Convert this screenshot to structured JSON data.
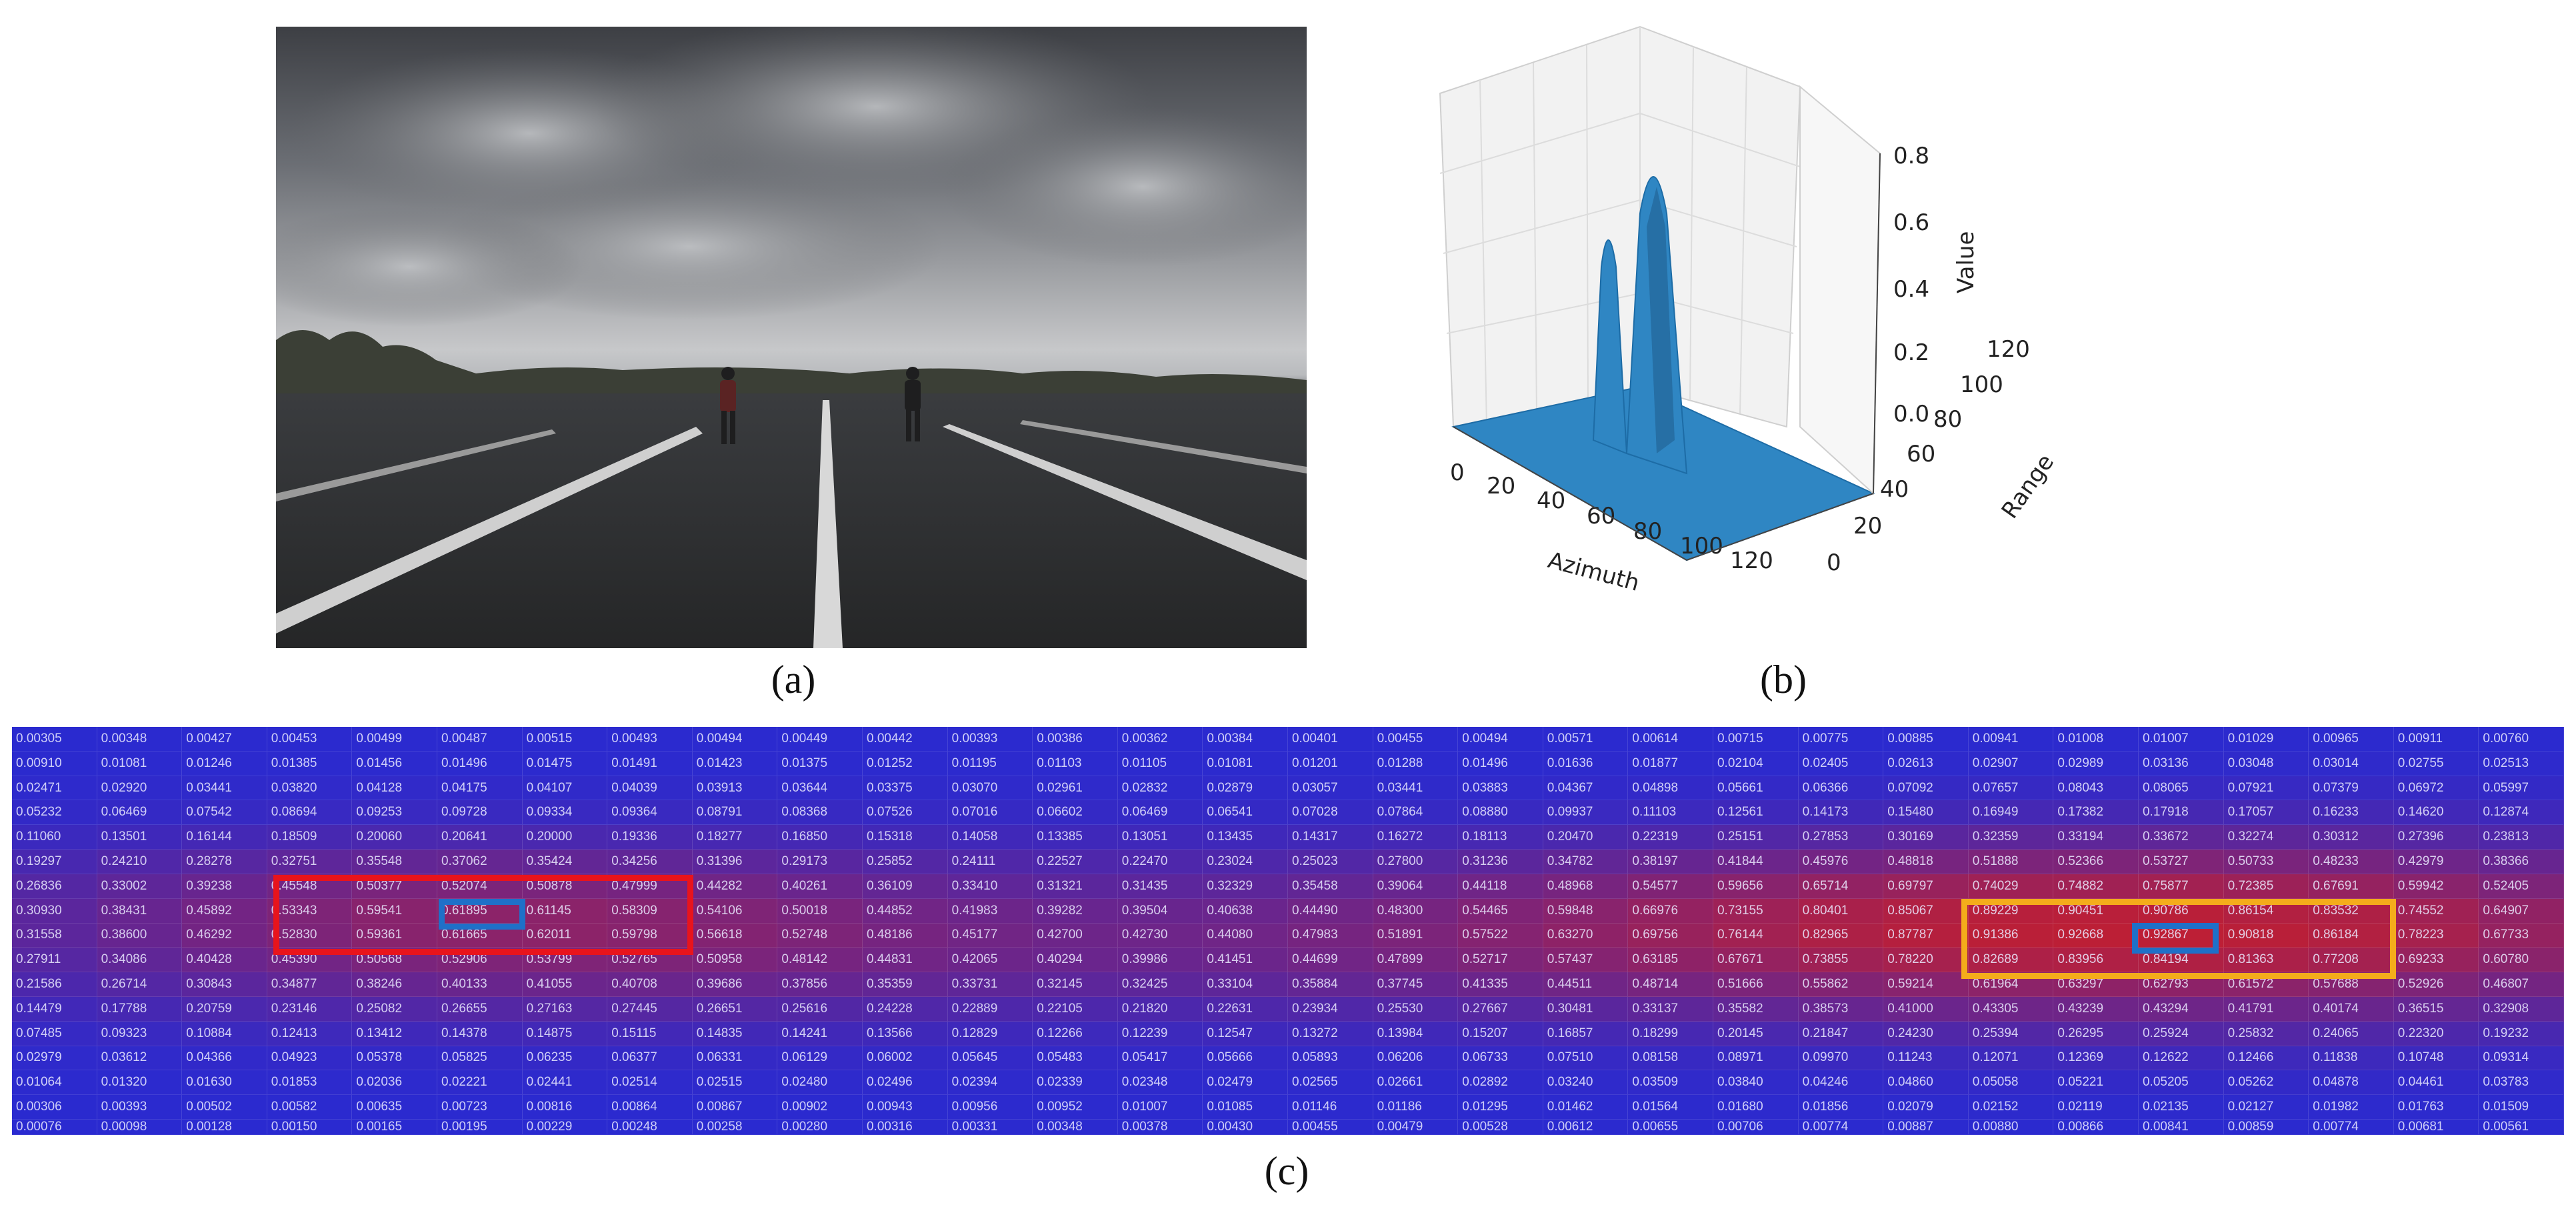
{
  "panel_a": {
    "caption": "(a)"
  },
  "panel_b": {
    "caption": "(b)",
    "axes": {
      "xlabel": "Azimuth",
      "ylabel": "Range",
      "zlabel": "Value",
      "xticks": [
        "0",
        "20",
        "40",
        "60",
        "80",
        "100",
        "120"
      ],
      "yticks": [
        "0",
        "20",
        "40",
        "60",
        "80",
        "100",
        "120"
      ],
      "zticks": [
        "0.0",
        "0.2",
        "0.4",
        "0.6",
        "0.8"
      ]
    },
    "surface_color": "#2f86c3"
  },
  "panel_c": {
    "caption": "(c)",
    "columns": 30,
    "rows": [
      [
        "0.00305",
        "0.00348",
        "0.00427",
        "0.00453",
        "0.00499",
        "0.00487",
        "0.00515",
        "0.00493",
        "0.00494",
        "0.00449",
        "0.00442",
        "0.00393",
        "0.00386",
        "0.00362",
        "0.00384",
        "0.00401",
        "0.00455",
        "0.00494",
        "0.00571",
        "0.00614",
        "0.00715",
        "0.00775",
        "0.00885",
        "0.00941",
        "0.01008",
        "0.01007",
        "0.01029",
        "0.00965",
        "0.00911",
        "0.00760"
      ],
      [
        "0.00910",
        "0.01081",
        "0.01246",
        "0.01385",
        "0.01456",
        "0.01496",
        "0.01475",
        "0.01491",
        "0.01423",
        "0.01375",
        "0.01252",
        "0.01195",
        "0.01103",
        "0.01105",
        "0.01081",
        "0.01201",
        "0.01288",
        "0.01496",
        "0.01636",
        "0.01877",
        "0.02104",
        "0.02405",
        "0.02613",
        "0.02907",
        "0.02989",
        "0.03136",
        "0.03048",
        "0.03014",
        "0.02755",
        "0.02513"
      ],
      [
        "0.02471",
        "0.02920",
        "0.03441",
        "0.03820",
        "0.04128",
        "0.04175",
        "0.04107",
        "0.04039",
        "0.03913",
        "0.03644",
        "0.03375",
        "0.03070",
        "0.02961",
        "0.02832",
        "0.02879",
        "0.03057",
        "0.03441",
        "0.03883",
        "0.04367",
        "0.04898",
        "0.05661",
        "0.06366",
        "0.07092",
        "0.07657",
        "0.08043",
        "0.08065",
        "0.07921",
        "0.07379",
        "0.06972",
        "0.05997"
      ],
      [
        "0.05232",
        "0.06469",
        "0.07542",
        "0.08694",
        "0.09253",
        "0.09728",
        "0.09334",
        "0.09364",
        "0.08791",
        "0.08368",
        "0.07526",
        "0.07016",
        "0.06602",
        "0.06469",
        "0.06541",
        "0.07028",
        "0.07864",
        "0.08880",
        "0.09937",
        "0.11103",
        "0.12561",
        "0.14173",
        "0.15480",
        "0.16949",
        "0.17382",
        "0.17918",
        "0.17057",
        "0.16233",
        "0.14620",
        "0.12874"
      ],
      [
        "0.11060",
        "0.13501",
        "0.16144",
        "0.18509",
        "0.20060",
        "0.20641",
        "0.20000",
        "0.19336",
        "0.18277",
        "0.16850",
        "0.15318",
        "0.14058",
        "0.13385",
        "0.13051",
        "0.13435",
        "0.14317",
        "0.16272",
        "0.18113",
        "0.20470",
        "0.22319",
        "0.25151",
        "0.27853",
        "0.30169",
        "0.32359",
        "0.33194",
        "0.33672",
        "0.32274",
        "0.30312",
        "0.27396",
        "0.23813"
      ],
      [
        "0.19297",
        "0.24210",
        "0.28278",
        "0.32751",
        "0.35548",
        "0.37062",
        "0.35424",
        "0.34256",
        "0.31396",
        "0.29173",
        "0.25852",
        "0.24111",
        "0.22527",
        "0.22470",
        "0.23024",
        "0.25023",
        "0.27800",
        "0.31236",
        "0.34782",
        "0.38197",
        "0.41844",
        "0.45976",
        "0.48818",
        "0.51888",
        "0.52366",
        "0.53727",
        "0.50733",
        "0.48233",
        "0.42979",
        "0.38366"
      ],
      [
        "0.26836",
        "0.33002",
        "0.39238",
        "0.45548",
        "0.50377",
        "0.52074",
        "0.50878",
        "0.47999",
        "0.44282",
        "0.40261",
        "0.36109",
        "0.33410",
        "0.31321",
        "0.31435",
        "0.32329",
        "0.35458",
        "0.39064",
        "0.44118",
        "0.48968",
        "0.54577",
        "0.59656",
        "0.65714",
        "0.69797",
        "0.74029",
        "0.74882",
        "0.75877",
        "0.72385",
        "0.67691",
        "0.59942",
        "0.52405"
      ],
      [
        "0.30930",
        "0.38431",
        "0.45892",
        "0.53343",
        "0.59541",
        "0.61895",
        "0.61145",
        "0.58309",
        "0.54106",
        "0.50018",
        "0.44852",
        "0.41983",
        "0.39282",
        "0.39504",
        "0.40638",
        "0.44490",
        "0.48300",
        "0.54465",
        "0.59848",
        "0.66976",
        "0.73155",
        "0.80401",
        "0.85067",
        "0.89229",
        "0.90451",
        "0.90786",
        "0.86154",
        "0.83532",
        "0.74552",
        "0.64907"
      ],
      [
        "0.31558",
        "0.38600",
        "0.46292",
        "0.52830",
        "0.59361",
        "0.61665",
        "0.62011",
        "0.59798",
        "0.56618",
        "0.52748",
        "0.48186",
        "0.45177",
        "0.42700",
        "0.42730",
        "0.44080",
        "0.47983",
        "0.51891",
        "0.57522",
        "0.63270",
        "0.69756",
        "0.76144",
        "0.82965",
        "0.87787",
        "0.91386",
        "0.92668",
        "0.92867",
        "0.90818",
        "0.86184",
        "0.78223",
        "0.67733"
      ],
      [
        "0.27911",
        "0.34086",
        "0.40428",
        "0.45390",
        "0.50568",
        "0.52906",
        "0.53799",
        "0.52765",
        "0.50958",
        "0.48142",
        "0.44831",
        "0.42065",
        "0.40294",
        "0.39986",
        "0.41451",
        "0.44699",
        "0.47899",
        "0.52717",
        "0.57437",
        "0.63185",
        "0.67671",
        "0.73855",
        "0.78220",
        "0.82689",
        "0.83956",
        "0.84194",
        "0.81363",
        "0.77208",
        "0.69233",
        "0.60780"
      ],
      [
        "0.21586",
        "0.26714",
        "0.30843",
        "0.34877",
        "0.38246",
        "0.40133",
        "0.41055",
        "0.40708",
        "0.39686",
        "0.37856",
        "0.35359",
        "0.33731",
        "0.32145",
        "0.32425",
        "0.33104",
        "0.35884",
        "0.37745",
        "0.41335",
        "0.44511",
        "0.48714",
        "0.51666",
        "0.55862",
        "0.59214",
        "0.61964",
        "0.63297",
        "0.62793",
        "0.61572",
        "0.57688",
        "0.52926",
        "0.46807"
      ],
      [
        "0.14479",
        "0.17788",
        "0.20759",
        "0.23146",
        "0.25082",
        "0.26655",
        "0.27163",
        "0.27445",
        "0.26651",
        "0.25616",
        "0.24228",
        "0.22889",
        "0.22105",
        "0.21820",
        "0.22631",
        "0.23934",
        "0.25530",
        "0.27667",
        "0.30481",
        "0.33137",
        "0.35582",
        "0.38573",
        "0.41000",
        "0.43305",
        "0.43239",
        "0.43294",
        "0.41791",
        "0.40174",
        "0.36515",
        "0.32908"
      ],
      [
        "0.07485",
        "0.09323",
        "0.10884",
        "0.12413",
        "0.13412",
        "0.14378",
        "0.14875",
        "0.15115",
        "0.14835",
        "0.14241",
        "0.13566",
        "0.12829",
        "0.12266",
        "0.12239",
        "0.12547",
        "0.13272",
        "0.13984",
        "0.15207",
        "0.16857",
        "0.18299",
        "0.20145",
        "0.21847",
        "0.24230",
        "0.25394",
        "0.26295",
        "0.25924",
        "0.25832",
        "0.24065",
        "0.22320",
        "0.19232"
      ],
      [
        "0.02979",
        "0.03612",
        "0.04366",
        "0.04923",
        "0.05378",
        "0.05825",
        "0.06235",
        "0.06377",
        "0.06331",
        "0.06129",
        "0.06002",
        "0.05645",
        "0.05483",
        "0.05417",
        "0.05666",
        "0.05893",
        "0.06206",
        "0.06733",
        "0.07510",
        "0.08158",
        "0.08971",
        "0.09970",
        "0.11243",
        "0.12071",
        "0.12369",
        "0.12622",
        "0.12466",
        "0.11838",
        "0.10748",
        "0.09314"
      ],
      [
        "0.01064",
        "0.01320",
        "0.01630",
        "0.01853",
        "0.02036",
        "0.02221",
        "0.02441",
        "0.02514",
        "0.02515",
        "0.02480",
        "0.02496",
        "0.02394",
        "0.02339",
        "0.02348",
        "0.02479",
        "0.02565",
        "0.02661",
        "0.02892",
        "0.03240",
        "0.03509",
        "0.03840",
        "0.04246",
        "0.04860",
        "0.05058",
        "0.05221",
        "0.05205",
        "0.05262",
        "0.04878",
        "0.04461",
        "0.03783"
      ],
      [
        "0.00306",
        "0.00393",
        "0.00502",
        "0.00582",
        "0.00635",
        "0.00723",
        "0.00816",
        "0.00864",
        "0.00867",
        "0.00902",
        "0.00943",
        "0.00956",
        "0.00952",
        "0.01007",
        "0.01085",
        "0.01146",
        "0.01186",
        "0.01295",
        "0.01462",
        "0.01564",
        "0.01680",
        "0.01856",
        "0.02079",
        "0.02152",
        "0.02119",
        "0.02135",
        "0.02127",
        "0.01982",
        "0.01763",
        "0.01509"
      ],
      [
        "0.00076",
        "0.00098",
        "0.00128",
        "0.00150",
        "0.00165",
        "0.00195",
        "0.00229",
        "0.00248",
        "0.00258",
        "0.00280",
        "0.00316",
        "0.00331",
        "0.00348",
        "0.00378",
        "0.00430",
        "0.00455",
        "0.00479",
        "0.00528",
        "0.00612",
        "0.00655",
        "0.00706",
        "0.00774",
        "0.00887",
        "0.00880",
        "0.00866",
        "0.00841",
        "0.00859",
        "0.00774",
        "0.00681",
        "0.00561"
      ]
    ],
    "colors": {
      "low": "#2a2ad0",
      "high": "#c81e2a",
      "red_box": "#e8141c",
      "orange_box": "#f4ac1b",
      "blue_box": "#1f70c8"
    }
  }
}
